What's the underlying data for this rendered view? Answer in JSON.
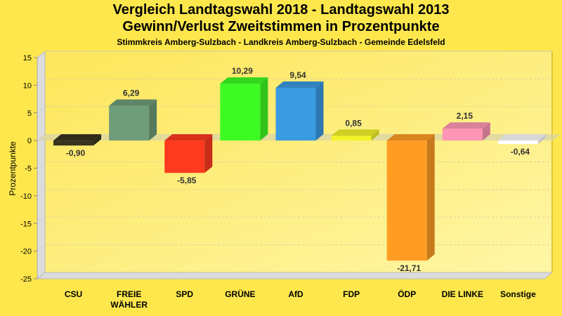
{
  "chart_data": {
    "type": "bar",
    "title": "Vergleich Landtagswahl 2018 - Landtagswahl 2013",
    "subtitle_line1": "Gewinn/Verlust Zweitstimmen in Prozentpunkte",
    "subtitle_line2": "Stimmkreis Amberg-Sulzbach - Landkreis Amberg-Sulzbach - Gemeinde Edelsfeld",
    "xlabel": "",
    "ylabel": "Prozentpunkte",
    "ylim": [
      -25,
      15
    ],
    "yticks": [
      15,
      10,
      5,
      0,
      -5,
      -10,
      -15,
      -20,
      -25
    ],
    "grid": true,
    "legend": "none",
    "categories": [
      [
        "CSU"
      ],
      [
        "FREIE",
        "WÄHLER"
      ],
      [
        "SPD"
      ],
      [
        "GRÜNE"
      ],
      [
        "AfD"
      ],
      [
        "FDP"
      ],
      [
        "ÖDP"
      ],
      [
        "DIE LINKE"
      ],
      [
        "Sonstige"
      ]
    ],
    "values": [
      -0.9,
      6.29,
      -5.85,
      10.29,
      9.54,
      0.85,
      -21.71,
      2.15,
      -0.64
    ],
    "value_labels": [
      "-0,90",
      "6,29",
      "-5,85",
      "10,29",
      "9,54",
      "0,85",
      "-21,71",
      "2,15",
      "-0,64"
    ],
    "colors": [
      "#36331f",
      "#6f9c7a",
      "#ff3a1f",
      "#3dfb22",
      "#3a9ae2",
      "#f4f32a",
      "#ff9d23",
      "#ff96b5",
      "#ffffff"
    ]
  }
}
